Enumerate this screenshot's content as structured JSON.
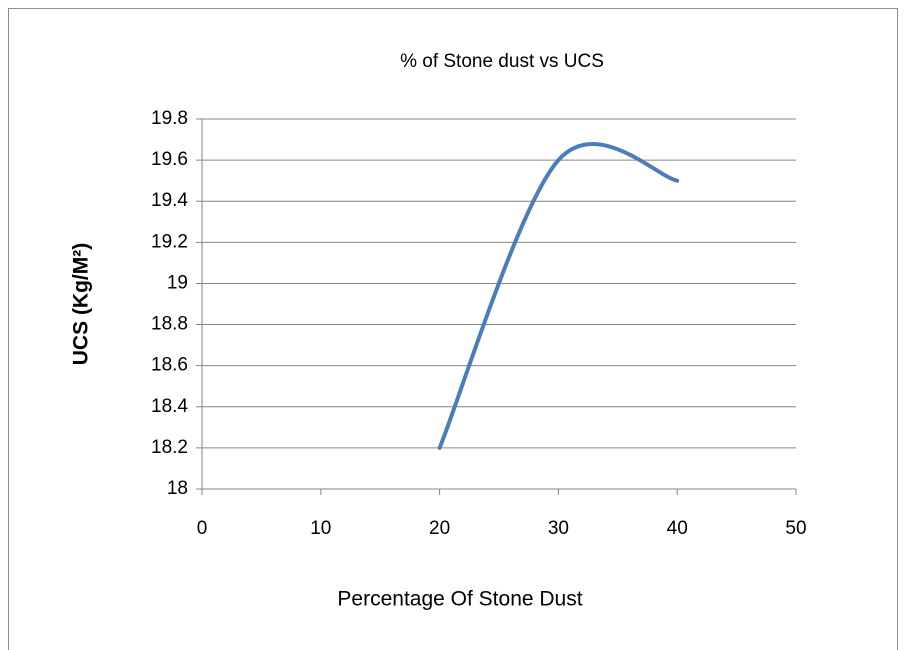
{
  "chart_data": {
    "type": "line",
    "title": "% of Stone dust vs UCS",
    "x_label": "Percentage Of Stone Dust",
    "y_label": "UCS (Kg/M²)",
    "x": [
      20,
      30,
      40
    ],
    "series": [
      {
        "name": "UCS",
        "color": "#4a7ebb",
        "values": [
          18.2,
          19.6,
          19.5
        ]
      }
    ],
    "xlim": [
      0,
      50
    ],
    "xticks": [
      0,
      10,
      20,
      30,
      40,
      50
    ],
    "ylim": [
      18,
      19.8
    ],
    "yticks": [
      18,
      18.2,
      18.4,
      18.6,
      18.8,
      19,
      19.2,
      19.4,
      19.6,
      19.8
    ],
    "grid": true,
    "smooth": true
  }
}
